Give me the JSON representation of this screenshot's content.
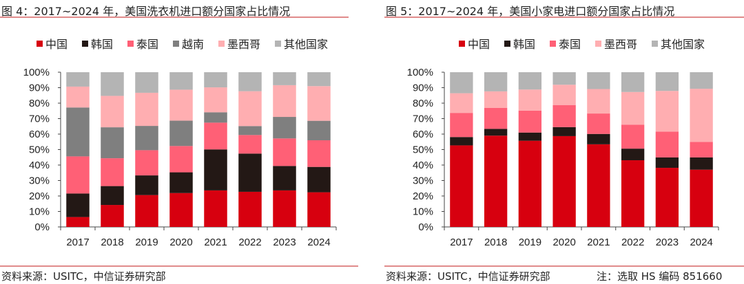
{
  "colors": {
    "中国": "#d7000f",
    "韩国": "#231815",
    "泰国": "#ff6076",
    "越南": "#7f7f7f",
    "墨西哥": "#ffaeb1",
    "其他国家": "#b4b4b4"
  },
  "chart_data": [
    {
      "type": "bar",
      "stacked": true,
      "title": "图 4：2017~2024 年，美国洗衣机进口额分国家占比情况",
      "categories": [
        "2017",
        "2018",
        "2019",
        "2020",
        "2021",
        "2022",
        "2023",
        "2024"
      ],
      "ylim": [
        0,
        100
      ],
      "yticks": [
        "0%",
        "10%",
        "20%",
        "30%",
        "40%",
        "50%",
        "60%",
        "70%",
        "80%",
        "90%",
        "100%"
      ],
      "legend_position": "top",
      "series": [
        {
          "name": "中国",
          "values": [
            6.4,
            14.2,
            20.6,
            21.9,
            23.6,
            22.7,
            23.6,
            22.4
          ]
        },
        {
          "name": "韩国",
          "values": [
            15.2,
            12.2,
            12.7,
            13.4,
            26.5,
            24.7,
            15.8,
            16.4
          ]
        },
        {
          "name": "泰国",
          "values": [
            24.0,
            18.0,
            16.3,
            17.0,
            17.3,
            12.0,
            17.8,
            17.2
          ]
        },
        {
          "name": "越南",
          "values": [
            31.6,
            20.0,
            15.7,
            16.4,
            6.7,
            5.8,
            13.9,
            12.6
          ]
        },
        {
          "name": "墨西哥",
          "values": [
            13.5,
            20.3,
            21.4,
            20.0,
            16.1,
            22.5,
            20.5,
            22.4
          ]
        },
        {
          "name": "其他国家",
          "values": [
            9.3,
            15.3,
            13.3,
            11.3,
            9.8,
            12.3,
            8.4,
            9.0
          ]
        }
      ],
      "source": "资料来源：USITC，中信证券研究部"
    },
    {
      "type": "bar",
      "stacked": true,
      "title": "图 5：2017~2024 年，美国小家电进口额分国家占比情况",
      "categories": [
        "2017",
        "2018",
        "2019",
        "2020",
        "2021",
        "2022",
        "2023",
        "2024"
      ],
      "ylim": [
        0,
        100
      ],
      "yticks": [
        "0%",
        "10%",
        "20%",
        "30%",
        "40%",
        "50%",
        "60%",
        "70%",
        "80%",
        "90%",
        "100%"
      ],
      "legend_position": "top",
      "series": [
        {
          "name": "中国",
          "values": [
            52.7,
            59.0,
            55.7,
            58.7,
            53.4,
            43.1,
            38.2,
            37.0
          ]
        },
        {
          "name": "韩国",
          "values": [
            5.4,
            4.4,
            5.3,
            5.8,
            6.7,
            7.5,
            6.7,
            7.9
          ]
        },
        {
          "name": "泰国",
          "values": [
            15.6,
            13.5,
            14.2,
            14.3,
            13.2,
            15.4,
            16.7,
            10.0
          ]
        },
        {
          "name": "墨西哥",
          "values": [
            12.7,
            10.7,
            13.6,
            13.1,
            15.8,
            21.2,
            26.3,
            34.4
          ]
        },
        {
          "name": "其他国家",
          "values": [
            13.6,
            12.4,
            11.2,
            8.1,
            10.9,
            12.8,
            12.1,
            10.7
          ]
        }
      ],
      "source": "资料来源：USITC，中信证券研究部",
      "note": "注：选取 HS 编码 851660"
    }
  ]
}
